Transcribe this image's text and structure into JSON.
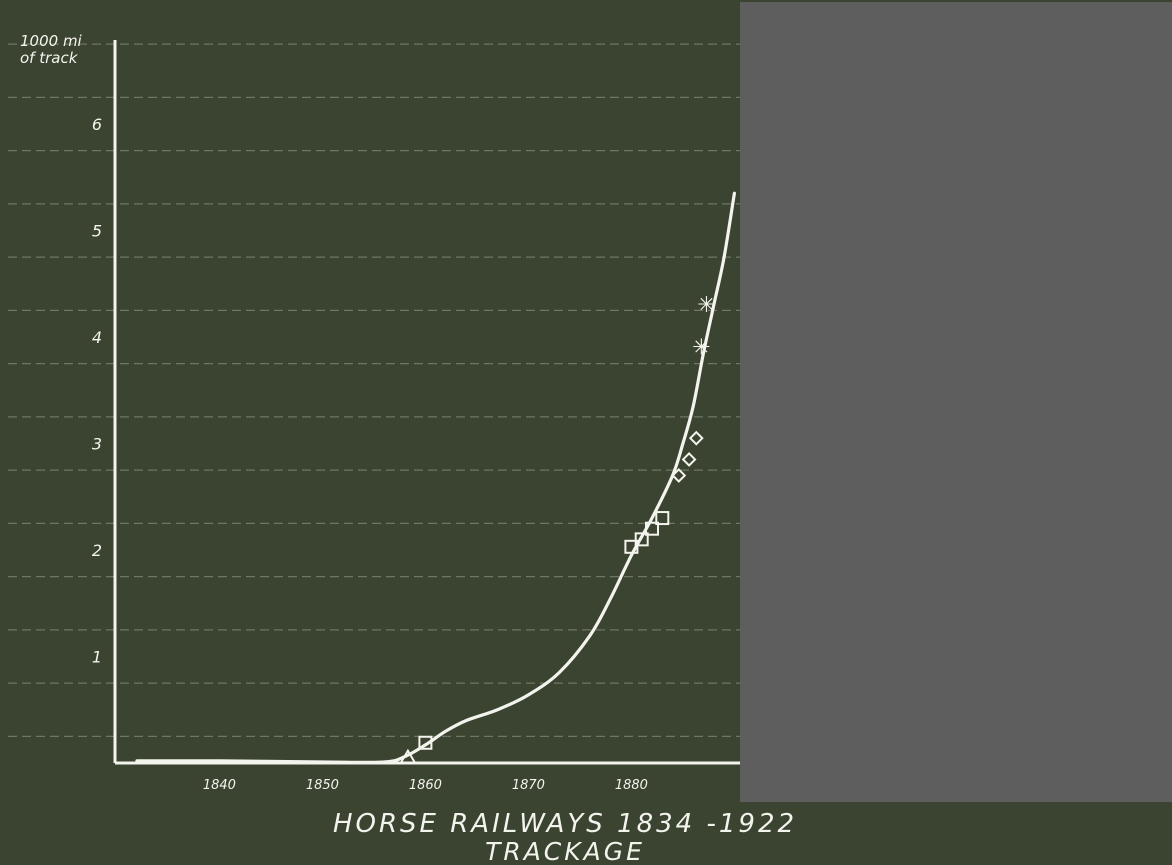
{
  "colors": {
    "chalkboard": "#3b4430",
    "gray_panel": "#5e5e5e",
    "chalk": "#f4f4ee",
    "grid_line": "#9aa08e"
  },
  "chart_data": {
    "type": "line",
    "title": "HORSE RAILWAYS 1834 -1922",
    "subtitle": "TRACKAGE",
    "ylabel_line1": "1000 mi",
    "ylabel_line2": "of track",
    "xlabel": "",
    "xlim": [
      1830,
      1892
    ],
    "ylim": [
      0,
      6.75
    ],
    "xticks": [
      1840,
      1850,
      1860,
      1870,
      1880
    ],
    "xtick_labels": [
      "1840",
      "1850",
      "1860",
      "1870",
      "1880"
    ],
    "yticks": [
      1,
      2,
      3,
      4,
      5,
      6
    ],
    "ytick_labels": [
      "1",
      "2",
      "3",
      "4",
      "5",
      "6"
    ],
    "grid": true,
    "series": [
      {
        "style": "curve",
        "x": [
          1832,
          1840,
          1850,
          1856,
          1858,
          1860,
          1862,
          1864,
          1867,
          1870,
          1873,
          1876,
          1878,
          1880,
          1882,
          1884,
          1885,
          1886,
          1887,
          1888,
          1889,
          1890
        ],
        "y": [
          0.02,
          0.02,
          0.01,
          0.01,
          0.06,
          0.17,
          0.3,
          0.4,
          0.5,
          0.64,
          0.85,
          1.2,
          1.55,
          1.95,
          2.3,
          2.7,
          3.0,
          3.35,
          3.85,
          4.3,
          4.75,
          5.35
        ]
      },
      {
        "style": "squares",
        "x": [
          1860,
          1880,
          1881,
          1882,
          1883
        ],
        "y": [
          0.19,
          2.03,
          2.1,
          2.2,
          2.3
        ]
      },
      {
        "style": "triangles",
        "x": [
          1858.3
        ],
        "y": [
          0.05
        ]
      },
      {
        "style": "diamonds",
        "x": [
          1884.6,
          1885.6,
          1886.3
        ],
        "y": [
          2.7,
          2.85,
          3.05
        ]
      },
      {
        "style": "stars",
        "x": [
          1886.8,
          1887.3
        ],
        "y": [
          3.9,
          4.3
        ]
      }
    ]
  }
}
